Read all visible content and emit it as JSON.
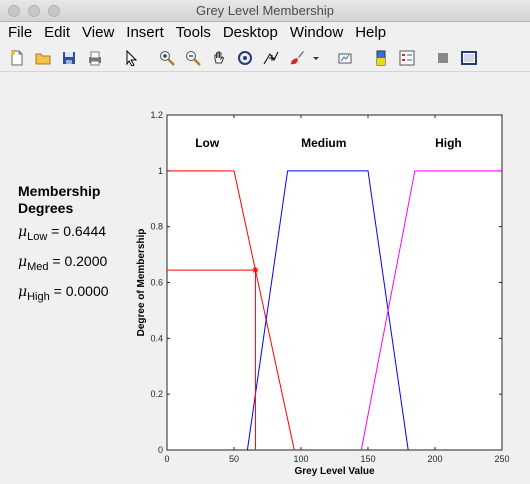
{
  "window": {
    "title": "Grey Level Membership"
  },
  "menu": [
    "File",
    "Edit",
    "View",
    "Insert",
    "Tools",
    "Desktop",
    "Window",
    "Help"
  ],
  "toolbar": [
    {
      "name": "new-figure-icon"
    },
    {
      "name": "open-file-icon"
    },
    {
      "name": "save-icon"
    },
    {
      "name": "print-icon"
    },
    {
      "name": "pointer-icon"
    },
    {
      "name": "zoom-in-icon"
    },
    {
      "name": "zoom-out-icon"
    },
    {
      "name": "pan-hand-icon"
    },
    {
      "name": "rotate-3d-icon"
    },
    {
      "name": "data-cursor-icon"
    },
    {
      "name": "brush-icon"
    },
    {
      "name": "link-plot-icon"
    },
    {
      "name": "colorbar-icon"
    },
    {
      "name": "legend-icon"
    },
    {
      "name": "hide-tools-icon"
    },
    {
      "name": "show-tools-icon"
    }
  ],
  "panel": {
    "heading_line1": "Membership",
    "heading_line2": "Degrees",
    "mu_symbol": "μ",
    "rows": [
      {
        "sub": "Low",
        "text": " = 0.6444"
      },
      {
        "sub": "Med",
        "text": " = 0.2000"
      },
      {
        "sub": "High",
        "text": " = 0.0000"
      }
    ]
  },
  "chart_data": {
    "type": "line",
    "xlabel": "Grey Level Value",
    "ylabel": "Degree of Membership",
    "xlim": [
      0,
      250
    ],
    "ylim": [
      0,
      1.2
    ],
    "xticks": [
      0,
      50,
      100,
      150,
      200,
      250
    ],
    "yticks": [
      0,
      0.2,
      0.4,
      0.6,
      0.8,
      1,
      1.2
    ],
    "grid": false,
    "region_labels": [
      {
        "text": "Low",
        "x": 30,
        "y": 1.1
      },
      {
        "text": "Medium",
        "x": 117,
        "y": 1.1
      },
      {
        "text": "High",
        "x": 210,
        "y": 1.1
      }
    ],
    "series": [
      {
        "color": "#ff0000",
        "x": [
          0,
          50,
          95
        ],
        "y": [
          1,
          1,
          0
        ]
      },
      {
        "color": "#0000ff",
        "x": [
          60,
          90,
          150,
          180
        ],
        "y": [
          0,
          1,
          1,
          0
        ]
      },
      {
        "color": "#ff00ff",
        "x": [
          145,
          185,
          250
        ],
        "y": [
          0,
          1,
          1
        ]
      }
    ],
    "marker": {
      "x": 66,
      "y": 0.6444,
      "color": "#ff0000",
      "symbol": "*"
    }
  }
}
